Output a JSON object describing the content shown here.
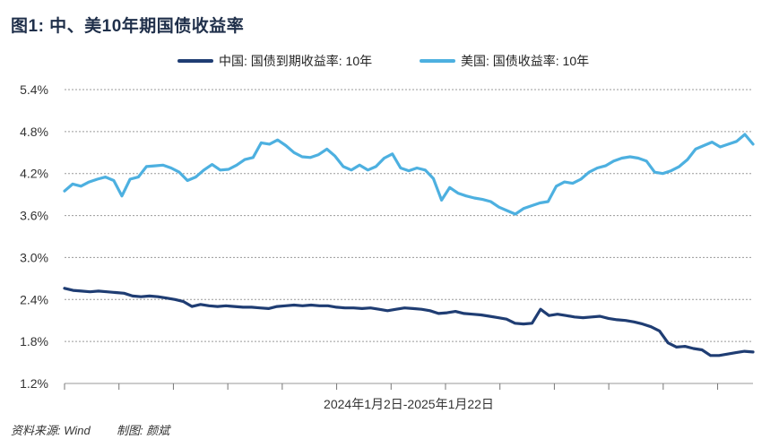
{
  "title": "图1: 中、美10年期国债收益率",
  "source": "资料来源: Wind",
  "credit": "制图: 颜斌",
  "chart_data": {
    "type": "line",
    "xlabel": "2024年1月2日-2025年1月22日",
    "ylim": [
      1.2,
      5.4
    ],
    "yticks": [
      "5.4%",
      "4.8%",
      "4.2%",
      "3.6%",
      "3.0%",
      "2.4%",
      "1.8%",
      "1.2%"
    ],
    "ytick_values": [
      5.4,
      4.8,
      4.2,
      3.6,
      3.0,
      2.4,
      1.8,
      1.2
    ],
    "grid": true,
    "legend_position": "top",
    "series": [
      {
        "name": "中国: 国债到期收益率: 10年",
        "color": "#1f3d73",
        "values": [
          2.56,
          2.53,
          2.52,
          2.51,
          2.52,
          2.51,
          2.5,
          2.49,
          2.45,
          2.44,
          2.45,
          2.44,
          2.42,
          2.4,
          2.37,
          2.3,
          2.33,
          2.31,
          2.3,
          2.31,
          2.3,
          2.29,
          2.29,
          2.28,
          2.27,
          2.3,
          2.31,
          2.32,
          2.31,
          2.32,
          2.31,
          2.31,
          2.29,
          2.28,
          2.28,
          2.27,
          2.28,
          2.26,
          2.24,
          2.26,
          2.28,
          2.27,
          2.26,
          2.24,
          2.2,
          2.21,
          2.23,
          2.2,
          2.19,
          2.18,
          2.16,
          2.14,
          2.12,
          2.06,
          2.05,
          2.06,
          2.26,
          2.17,
          2.19,
          2.17,
          2.15,
          2.14,
          2.15,
          2.16,
          2.13,
          2.11,
          2.1,
          2.08,
          2.05,
          2.01,
          1.95,
          1.78,
          1.72,
          1.73,
          1.7,
          1.68,
          1.6,
          1.6,
          1.62,
          1.64,
          1.66,
          1.65
        ]
      },
      {
        "name": "美国: 国债收益率: 10年",
        "color": "#4db0e0",
        "values": [
          3.95,
          4.05,
          4.02,
          4.08,
          4.12,
          4.15,
          4.1,
          3.88,
          4.12,
          4.15,
          4.3,
          4.31,
          4.32,
          4.28,
          4.22,
          4.1,
          4.15,
          4.25,
          4.33,
          4.25,
          4.26,
          4.32,
          4.4,
          4.43,
          4.64,
          4.62,
          4.68,
          4.6,
          4.5,
          4.44,
          4.43,
          4.47,
          4.55,
          4.45,
          4.3,
          4.25,
          4.32,
          4.25,
          4.3,
          4.42,
          4.48,
          4.28,
          4.24,
          4.28,
          4.25,
          4.13,
          3.82,
          4.0,
          3.92,
          3.88,
          3.85,
          3.83,
          3.8,
          3.72,
          3.67,
          3.62,
          3.7,
          3.74,
          3.78,
          3.8,
          4.02,
          4.08,
          4.06,
          4.12,
          4.22,
          4.28,
          4.31,
          4.38,
          4.42,
          4.44,
          4.42,
          4.38,
          4.22,
          4.2,
          4.24,
          4.3,
          4.4,
          4.55,
          4.6,
          4.65,
          4.58,
          4.62,
          4.66,
          4.76,
          4.62
        ]
      }
    ]
  }
}
